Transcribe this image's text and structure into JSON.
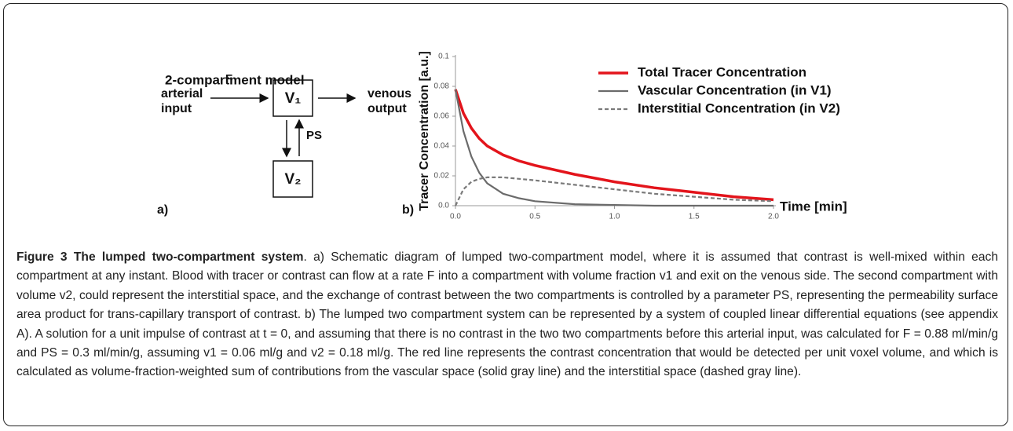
{
  "diagram": {
    "title": "2-compartment model",
    "input": "arterial input",
    "output": "venous output",
    "flow": "F",
    "exchange": "PS",
    "box1": "V₁",
    "box2": "V₂",
    "panel_a": "a)",
    "panel_b": "b)"
  },
  "chart_data": {
    "type": "line",
    "ylabel": "Tracer Concentration [a.u.]",
    "xlabel": "Time [min]",
    "x": [
      0,
      0.05,
      0.1,
      0.15,
      0.2,
      0.3,
      0.4,
      0.5,
      0.75,
      1.0,
      1.25,
      1.5,
      1.75,
      2.0
    ],
    "series": [
      {
        "name": "Total Tracer Concentration",
        "color": "#e3141b",
        "linestyle": "solid",
        "values": [
          0.078,
          0.062,
          0.052,
          0.045,
          0.04,
          0.034,
          0.03,
          0.027,
          0.021,
          0.016,
          0.012,
          0.009,
          0.006,
          0.004
        ]
      },
      {
        "name": "Vascular Concentration (in V1)",
        "color": "#6b6b6b",
        "linestyle": "solid",
        "values": [
          0.078,
          0.05,
          0.033,
          0.022,
          0.015,
          0.008,
          0.005,
          0.003,
          0.001,
          0.0005,
          0,
          0,
          0,
          0
        ]
      },
      {
        "name": "Interstitial Concentration (in V2)",
        "color": "#7a7a7a",
        "linestyle": "dashed",
        "values": [
          0,
          0.011,
          0.016,
          0.018,
          0.019,
          0.019,
          0.018,
          0.017,
          0.014,
          0.011,
          0.008,
          0.006,
          0.004,
          0.003
        ]
      }
    ],
    "xlim": [
      0,
      2
    ],
    "ylim": [
      0,
      0.1
    ],
    "xticks": [
      {
        "value": 0,
        "label": "0.0"
      },
      0.5,
      {
        "value": 1,
        "label": "1.0"
      },
      1.5,
      {
        "value": 2,
        "label": "2.0"
      }
    ],
    "yticks": [
      {
        "value": 0,
        "label": "0.0"
      },
      0.02,
      0.04,
      0.06,
      0.08,
      0.1
    ]
  },
  "caption": {
    "label": "Figure 3 The lumped two-compartment system",
    "text": ". a) Schematic diagram of lumped two-compartment model, where it is assumed that contrast is well-mixed within each compartment at any instant. Blood with tracer or contrast can flow at a rate F into a compartment with volume fraction v1 and exit on the venous side. The second compartment with volume v2, could represent the interstitial space, and the exchange of contrast between the two compartments is controlled by a parameter PS, representing the permeability surface area product for trans-capillary transport of contrast. b) The lumped two compartment system can be represented by a system of coupled linear differential equations (see appendix A). A solution for a unit impulse of contrast at t = 0, and assuming that there is no contrast in the two two compartments before this arterial input, was calculated for F = 0.88 ml/min/g and PS = 0.3 ml/min/g, assuming v1 = 0.06 ml/g and v2 = 0.18 ml/g. The red line represents the contrast concentration that would be detected per unit voxel volume, and which is calculated as volume-fraction-weighted sum of contributions from the vascular space (solid gray line) and the interstitial space (dashed gray line)."
  }
}
